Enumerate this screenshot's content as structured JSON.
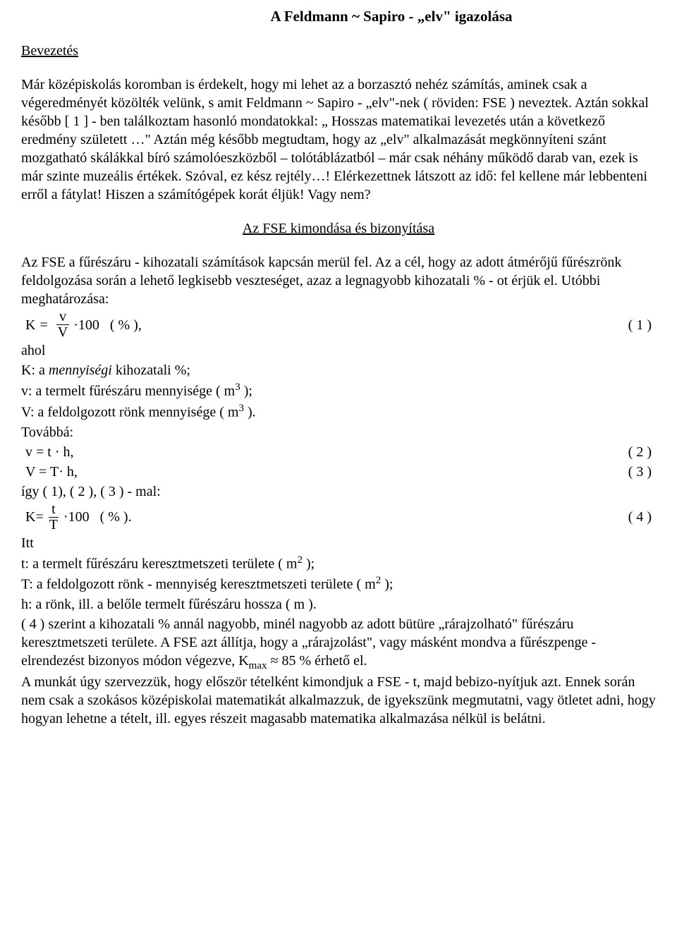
{
  "title": "A Feldmann ~ Sapiro - „elv\" igazolása",
  "sections": {
    "intro_heading": "Bevezetés",
    "intro_paragraph": "Már középiskolás koromban is érdekelt, hogy mi lehet az a borzasztó nehéz számítás, aminek csak a végeredményét közölték velünk, s amit Feldmann ~ Sapiro - „elv\"-nek ( röviden: FSE ) neveztek. Aztán sokkal később [ 1 ] - ben találkoztam hasonló mondatokkal: „ Hosszas matematikai levezetés után a következő eredmény született …\" Aztán még később megtudtam, hogy az „elv\" alkalmazását megkönnyíteni szánt mozgatható skálákkal bíró számolóeszközből – tolótáblázatból –  már csak néhány működő darab van, ezek is már szinte muzeális értékek. Szóval, ez kész rejtély…! Elérkezettnek látszott az idő: fel kellene már lebbenteni erről a fátylat! Hiszen a számítógépek korát éljük! Vagy nem?",
    "proof_heading": "Az FSE kimondása és bizonyítása",
    "proof_intro": "Az FSE a fűrészáru - kihozatali számítások kapcsán merül fel. Az a cél, hogy az adott átmérőjű fűrészrönk feldolgozása során a lehető legkisebb veszteséget, azaz a legnagyobb kihozatali % - ot érjük el. Utóbbi meghatározása:",
    "eq1": {
      "prefix": "K",
      "equals": "=",
      "num": "v",
      "den": "V",
      "suffix": "·100   ( % ),",
      "number": "( 1 )"
    },
    "ahol": "ahol",
    "def_K": "K: a",
    "def_K_italic": "mennyiségi",
    "def_K_rest": " kihozatali %;",
    "def_v": "v: a termelt fűrészáru mennyisége ( m",
    "def_v_unit": "3",
    "def_v_end": " );",
    "def_V": "V: a feldolgozott rönk mennyisége ( m",
    "def_V_unit": "3",
    "def_V_end": " ).",
    "tovabba": "Továbbá:",
    "eq2": {
      "text": "v = t · h,",
      "number": "( 2 )"
    },
    "eq3": {
      "text": "V = T· h,",
      "number": "( 3 )"
    },
    "igy": "így ( 1), ( 2 ), ( 3 ) - mal:",
    "eq4": {
      "prefix": "K=",
      "num": "t",
      "den": "T",
      "suffix": "·100   ( % ).",
      "number": "( 4 )"
    },
    "itt": "Itt",
    "def_t": "t: a termelt fűrészáru keresztmetszeti területe ( m",
    "def_t_unit": "2",
    "def_t_end": " );",
    "def_T": "T: a feldolgozott rönk - mennyiség keresztmetszeti területe ( m",
    "def_T_unit": "2",
    "def_T_end": " );",
    "def_h": "h: a rönk, ill. a belőle termelt fűrészáru hossza ( m ).",
    "final_p1": "( 4 ) szerint a kihozatali % annál nagyobb, minél nagyobb az adott bütüre „rárajzolható\" fűrészáru keresztmetszeti területe. A FSE azt állítja, hogy a „rárajzolást\", vagy másként mondva a fűrészpenge - elrendezést bizonyos módon végezve, K",
    "final_sub": "max",
    "final_approx": " ≈ 85 % érhető el.",
    "final_p2": " A munkát úgy szervezzük, hogy először tételként kimondjuk a FSE - t, majd bebizo-nyítjuk azt. Ennek során nem csak a szokásos középiskolai matematikát alkalmazzuk, de igyekszünk megmutatni, vagy ötletet adni, hogy hogyan lehetne a tételt, ill. egyes részeit magasabb matematika alkalmazása nélkül is belátni."
  }
}
